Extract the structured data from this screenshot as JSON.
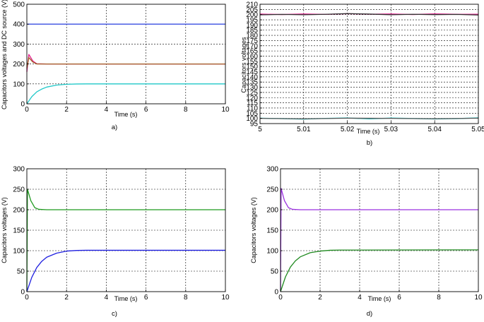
{
  "chart_data": [
    {
      "type": "line",
      "caption": "a)",
      "xlabel": "Time (s)",
      "ylabel": "Capacitors voltages and DC source (V)",
      "xlim": [
        0,
        10
      ],
      "ylim": [
        0,
        500
      ],
      "xticks": [
        "0",
        "2",
        "4",
        "6",
        "8",
        "10"
      ],
      "yticks": [
        "0",
        "100",
        "200",
        "300",
        "400",
        "500"
      ],
      "grid": true,
      "series": [
        {
          "color": "#3a4ee0",
          "points": [
            [
              0,
              400
            ],
            [
              10,
              400
            ]
          ]
        },
        {
          "color": "#e0208c",
          "points": [
            [
              0,
              160
            ],
            [
              0.1,
              248
            ],
            [
              0.3,
              215
            ],
            [
              0.5,
              201
            ],
            [
              1,
              200
            ],
            [
              10,
              200
            ]
          ]
        },
        {
          "color": "#a05a20",
          "points": [
            [
              0,
              178
            ],
            [
              0.1,
              232
            ],
            [
              0.3,
              210
            ],
            [
              0.5,
              200
            ],
            [
              1,
              200
            ],
            [
              10,
              200
            ]
          ]
        },
        {
          "color": "#20c8c8",
          "points": [
            [
              0,
              0
            ],
            [
              0.25,
              36
            ],
            [
              0.5,
              60
            ],
            [
              0.75,
              74
            ],
            [
              1,
              84
            ],
            [
              1.5,
              94
            ],
            [
              2,
              98
            ],
            [
              2.5,
              99.5
            ],
            [
              3,
              100
            ],
            [
              10,
              100
            ]
          ]
        }
      ]
    },
    {
      "type": "line",
      "caption": "b)",
      "xlabel": "Time (s)",
      "ylabel": "Capacitors voltages",
      "xlim": [
        5,
        5.05
      ],
      "ylim": [
        95,
        210
      ],
      "xticks": [
        "5",
        "5.01",
        "5.02",
        "5.03",
        "5.04",
        "5.05"
      ],
      "yticks": [
        "95",
        "100",
        "105",
        "110",
        "115",
        "120",
        "125",
        "130",
        "135",
        "140",
        "145",
        "150",
        "155",
        "160",
        "165",
        "170",
        "175",
        "180",
        "185",
        "190",
        "195",
        "200",
        "205",
        "210"
      ],
      "grid": true,
      "series": [
        {
          "color": "#e0208c",
          "points": [
            [
              5,
              200.5
            ],
            [
              5.005,
              200.1
            ],
            [
              5.01,
              200.6
            ],
            [
              5.015,
              200.2
            ],
            [
              5.02,
              200.9
            ],
            [
              5.025,
              200.4
            ],
            [
              5.03,
              200.6
            ],
            [
              5.035,
              200.1
            ],
            [
              5.04,
              200.7
            ],
            [
              5.045,
              200.3
            ],
            [
              5.05,
              200.4
            ]
          ]
        },
        {
          "color": "#333333",
          "points": [
            [
              5,
              199.8
            ],
            [
              5.005,
              200.2
            ],
            [
              5.01,
              199.9
            ],
            [
              5.015,
              200.3
            ],
            [
              5.02,
              201.0
            ],
            [
              5.025,
              200.5
            ],
            [
              5.03,
              199.9
            ],
            [
              5.035,
              200.3
            ],
            [
              5.04,
              200.0
            ],
            [
              5.045,
              200.2
            ],
            [
              5.05,
              199.6
            ]
          ]
        },
        {
          "color": "#20c8c8",
          "points": [
            [
              5,
              100.2
            ],
            [
              5.005,
              99.8
            ],
            [
              5.01,
              99.3
            ],
            [
              5.015,
              100.0
            ],
            [
              5.02,
              100.4
            ],
            [
              5.025,
              99.5
            ],
            [
              5.03,
              100.3
            ],
            [
              5.035,
              99.9
            ],
            [
              5.04,
              99.4
            ],
            [
              5.045,
              99.8
            ],
            [
              5.05,
              100.5
            ]
          ]
        },
        {
          "color": "#555555",
          "points": [
            [
              5,
              100.0
            ],
            [
              5.01,
              99.6
            ],
            [
              5.02,
              100.2
            ],
            [
              5.03,
              100.0
            ],
            [
              5.04,
              99.7
            ],
            [
              5.05,
              100.2
            ]
          ]
        }
      ]
    },
    {
      "type": "line",
      "caption": "c)",
      "xlabel": "Time (s)",
      "ylabel": "Capacitors voltages (V)",
      "xlim": [
        0,
        10
      ],
      "ylim": [
        0,
        300
      ],
      "xticks": [
        "0",
        "2",
        "4",
        "6",
        "8",
        "10"
      ],
      "yticks": [
        "0",
        "50",
        "100",
        "150",
        "200",
        "250",
        "300"
      ],
      "grid": true,
      "series": [
        {
          "color": "#1f9a1f",
          "points": [
            [
              0,
              0
            ],
            [
              0.03,
              250
            ],
            [
              0.2,
              222
            ],
            [
              0.4,
              205
            ],
            [
              0.6,
              201
            ],
            [
              1,
              200
            ],
            [
              10,
              200
            ]
          ]
        },
        {
          "color": "#2020e0",
          "points": [
            [
              0,
              0
            ],
            [
              0.25,
              35
            ],
            [
              0.5,
              59
            ],
            [
              0.75,
              74
            ],
            [
              1,
              84
            ],
            [
              1.5,
              94
            ],
            [
              2,
              99
            ],
            [
              2.5,
              100.5
            ],
            [
              3,
              101
            ],
            [
              10,
              101
            ]
          ]
        }
      ]
    },
    {
      "type": "line",
      "caption": "d)",
      "xlabel": "Time (s)",
      "ylabel": "Capacitors voltages (V)",
      "xlim": [
        0,
        10
      ],
      "ylim": [
        0,
        300
      ],
      "xticks": [
        "0",
        "2",
        "4",
        "6",
        "8",
        "10"
      ],
      "yticks": [
        "0",
        "50",
        "100",
        "150",
        "200",
        "250",
        "300"
      ],
      "grid": true,
      "series": [
        {
          "color": "#9b30e0",
          "points": [
            [
              0,
              0
            ],
            [
              0.03,
              252
            ],
            [
              0.2,
              222
            ],
            [
              0.4,
              205
            ],
            [
              0.6,
              201
            ],
            [
              1,
              200
            ],
            [
              10,
              200
            ]
          ]
        },
        {
          "color": "#1f8a1f",
          "points": [
            [
              0,
              0
            ],
            [
              0.25,
              36
            ],
            [
              0.5,
              60
            ],
            [
              0.75,
              75
            ],
            [
              1,
              85
            ],
            [
              1.5,
              95
            ],
            [
              2,
              99
            ],
            [
              2.5,
              101
            ],
            [
              3,
              101.5
            ],
            [
              10,
              102
            ]
          ]
        }
      ]
    }
  ]
}
